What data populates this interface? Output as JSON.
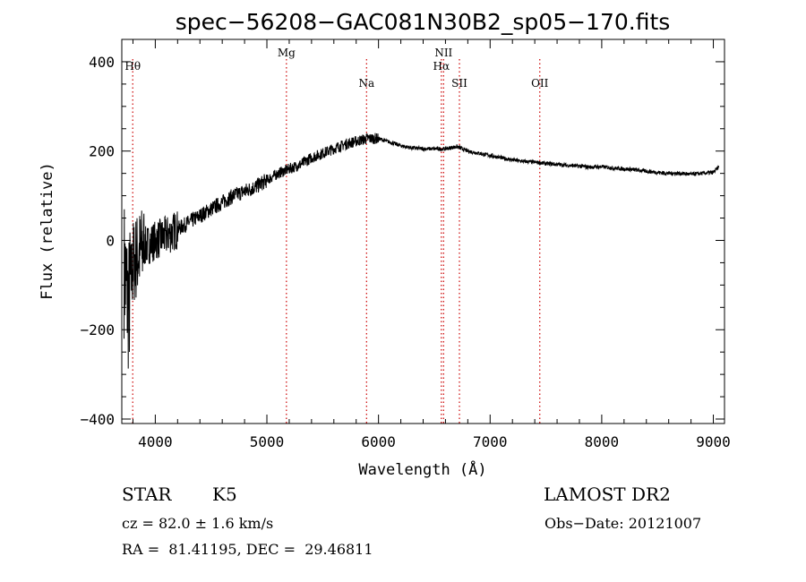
{
  "chart_data": {
    "type": "line",
    "title": "spec−56208−GAC081N30B2_sp05−170.fits",
    "xlabel": "Wavelength (Å)",
    "ylabel": "Flux (relative)",
    "xlim": [
      3700,
      9100
    ],
    "ylim": [
      -410,
      450
    ],
    "x_ticks": [
      4000,
      5000,
      6000,
      7000,
      8000,
      9000
    ],
    "y_ticks": [
      -400,
      -200,
      0,
      200,
      400
    ],
    "x_tick_labels": [
      "4000",
      "5000",
      "6000",
      "7000",
      "8000",
      "9000"
    ],
    "y_tick_labels": [
      "−400",
      "−200",
      "0",
      "200",
      "400"
    ],
    "grid": false,
    "legend": "none",
    "series_color": "#000000",
    "line_marker_color": "#cc0000",
    "series": [
      {
        "x": [
          3720,
          3760,
          3800,
          3850,
          3900,
          4000,
          4100,
          4200,
          4300,
          4400,
          4500,
          4600,
          4700,
          4800,
          4900,
          5000,
          5100,
          5200,
          5300,
          5400,
          5500,
          5600,
          5700,
          5800,
          5900,
          6000,
          6100,
          6200,
          6300,
          6400,
          6500,
          6600,
          6700,
          6800,
          6900,
          7000,
          7100,
          7200,
          7300,
          7400,
          7500,
          7600,
          7700,
          7800,
          7900,
          8000,
          8100,
          8200,
          8300,
          8400,
          8500,
          8600,
          8700,
          8800,
          8900,
          9000,
          9050
        ],
        "y": [
          -60,
          -150,
          -50,
          -30,
          -15,
          0,
          10,
          25,
          40,
          55,
          70,
          85,
          100,
          110,
          120,
          135,
          150,
          160,
          170,
          185,
          195,
          205,
          215,
          222,
          228,
          228,
          220,
          212,
          207,
          205,
          205,
          205,
          210,
          200,
          195,
          190,
          185,
          180,
          177,
          175,
          172,
          170,
          168,
          166,
          164,
          165,
          162,
          160,
          158,
          155,
          152,
          150,
          150,
          148,
          150,
          152,
          165
        ]
      }
    ],
    "annotations": [
      {
        "label": "Hθ",
        "x": 3798
      },
      {
        "label": "Mg",
        "x": 5175
      },
      {
        "label": "Na",
        "x": 5893
      },
      {
        "label": "NII",
        "x": 6583
      },
      {
        "label": "Hα",
        "x": 6563
      },
      {
        "label": "SII",
        "x": 6725
      },
      {
        "label": "OII",
        "x": 7445
      }
    ]
  },
  "info": {
    "class_label": "STAR",
    "subclass_label": "K5",
    "survey_label": "LAMOST DR2",
    "cz_text": "cz = 82.0 ± 1.6 km/s",
    "obsdate_text": "Obs−Date: 20121007",
    "coords_text": "RA =  81.41195, DEC =  29.46811"
  }
}
